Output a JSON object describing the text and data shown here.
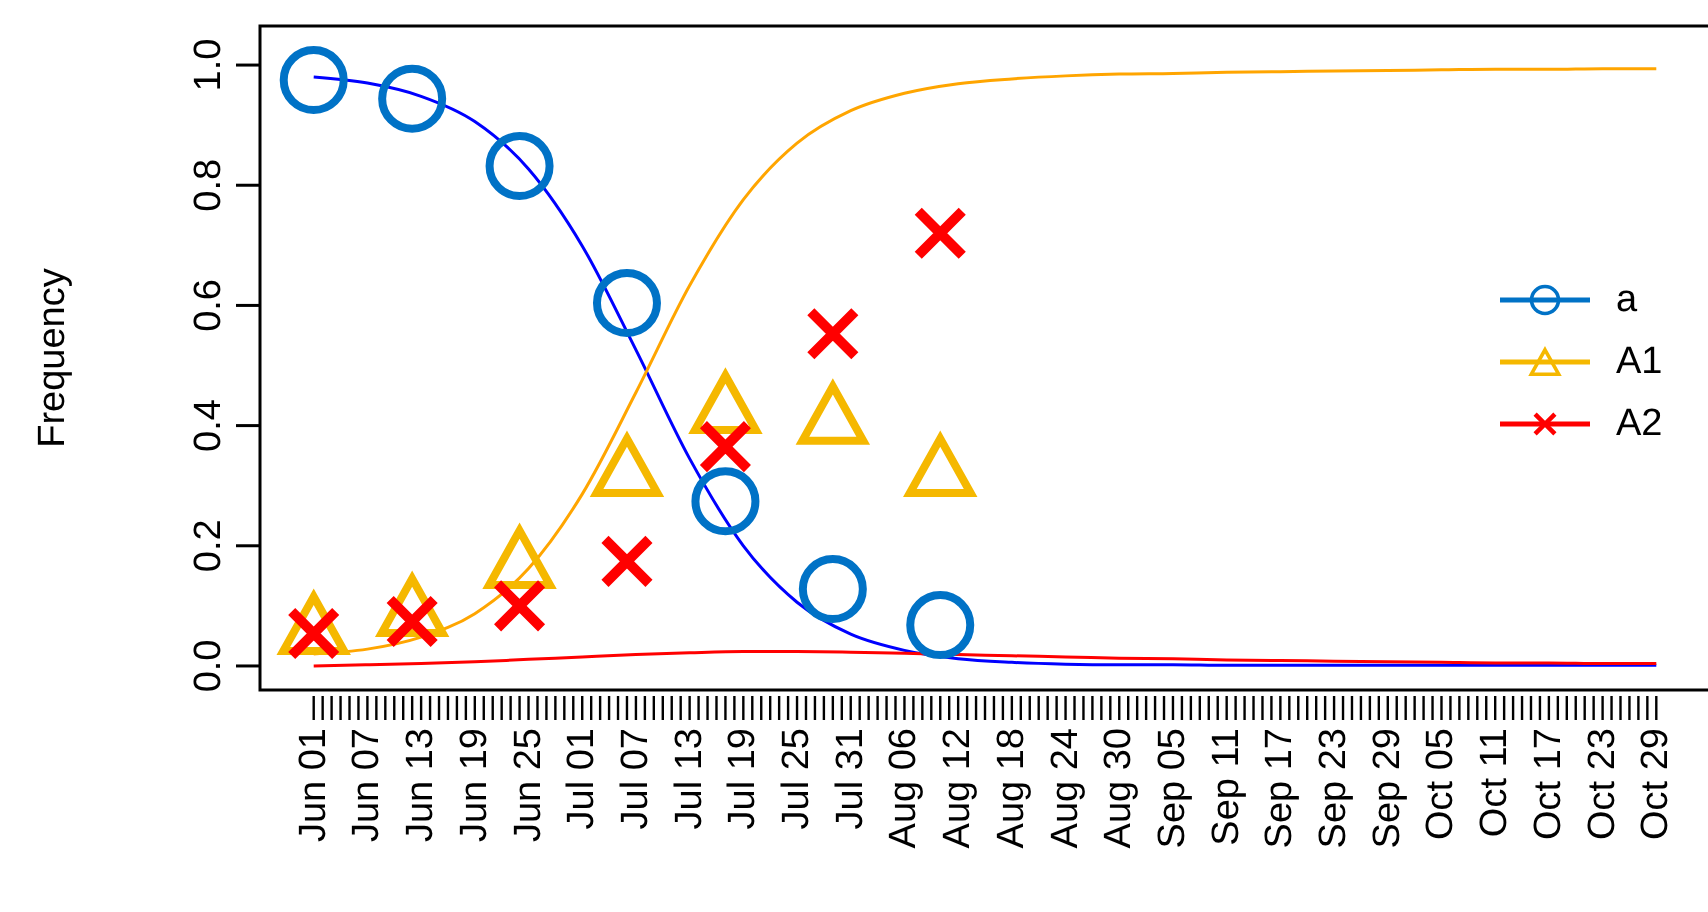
{
  "chart_data": {
    "type": "scatter",
    "ylabel": "Frequency",
    "legend": "right",
    "xlim": [
      "--05-26",
      "--11-04"
    ],
    "ylim": [
      -0.04,
      1.065
    ],
    "yticks": [
      {
        "value": 0,
        "label": "0.0"
      },
      {
        "value": 0.2,
        "label": "0.2"
      },
      {
        "value": 0.4,
        "label": "0.4"
      },
      {
        "value": 0.6,
        "label": "0.6"
      },
      {
        "value": 0.8,
        "label": "0.8"
      },
      {
        "value": 1,
        "label": "1.0"
      }
    ],
    "xticks": [
      {
        "value": "--06-01",
        "label": "Jun 01"
      },
      {
        "value": "--06-02",
        "label": null
      },
      {
        "value": "--06-03",
        "label": null
      },
      {
        "value": "--06-04",
        "label": null
      },
      {
        "value": "--06-05",
        "label": null
      },
      {
        "value": "--06-06",
        "label": null
      },
      {
        "value": "--06-07",
        "label": "Jun 07"
      },
      {
        "value": "--06-08",
        "label": null
      },
      {
        "value": "--06-09",
        "label": null
      },
      {
        "value": "--06-10",
        "label": null
      },
      {
        "value": "--06-11",
        "label": null
      },
      {
        "value": "--06-12",
        "label": null
      },
      {
        "value": "--06-13",
        "label": "Jun 13"
      },
      {
        "value": "--06-14",
        "label": null
      },
      {
        "value": "--06-15",
        "label": null
      },
      {
        "value": "--06-16",
        "label": null
      },
      {
        "value": "--06-17",
        "label": null
      },
      {
        "value": "--06-18",
        "label": null
      },
      {
        "value": "--06-19",
        "label": "Jun 19"
      },
      {
        "value": "--06-20",
        "label": null
      },
      {
        "value": "--06-21",
        "label": null
      },
      {
        "value": "--06-22",
        "label": null
      },
      {
        "value": "--06-23",
        "label": null
      },
      {
        "value": "--06-24",
        "label": null
      },
      {
        "value": "--06-25",
        "label": "Jun 25"
      },
      {
        "value": "--06-26",
        "label": null
      },
      {
        "value": "--06-27",
        "label": null
      },
      {
        "value": "--06-28",
        "label": null
      },
      {
        "value": "--06-29",
        "label": null
      },
      {
        "value": "--06-30",
        "label": null
      },
      {
        "value": "--07-01",
        "label": "Jul 01"
      },
      {
        "value": "--07-02",
        "label": null
      },
      {
        "value": "--07-03",
        "label": null
      },
      {
        "value": "--07-04",
        "label": null
      },
      {
        "value": "--07-05",
        "label": null
      },
      {
        "value": "--07-06",
        "label": null
      },
      {
        "value": "--07-07",
        "label": "Jul 07"
      },
      {
        "value": "--07-08",
        "label": null
      },
      {
        "value": "--07-09",
        "label": null
      },
      {
        "value": "--07-10",
        "label": null
      },
      {
        "value": "--07-11",
        "label": null
      },
      {
        "value": "--07-12",
        "label": null
      },
      {
        "value": "--07-13",
        "label": "Jul 13"
      },
      {
        "value": "--07-14",
        "label": null
      },
      {
        "value": "--07-15",
        "label": null
      },
      {
        "value": "--07-16",
        "label": null
      },
      {
        "value": "--07-17",
        "label": null
      },
      {
        "value": "--07-18",
        "label": null
      },
      {
        "value": "--07-19",
        "label": "Jul 19"
      },
      {
        "value": "--07-20",
        "label": null
      },
      {
        "value": "--07-21",
        "label": null
      },
      {
        "value": "--07-22",
        "label": null
      },
      {
        "value": "--07-23",
        "label": null
      },
      {
        "value": "--07-24",
        "label": null
      },
      {
        "value": "--07-25",
        "label": "Jul 25"
      },
      {
        "value": "--07-26",
        "label": null
      },
      {
        "value": "--07-27",
        "label": null
      },
      {
        "value": "--07-28",
        "label": null
      },
      {
        "value": "--07-29",
        "label": null
      },
      {
        "value": "--07-30",
        "label": null
      },
      {
        "value": "--07-31",
        "label": "Jul 31"
      },
      {
        "value": "--08-01",
        "label": null
      },
      {
        "value": "--08-02",
        "label": null
      },
      {
        "value": "--08-03",
        "label": null
      },
      {
        "value": "--08-04",
        "label": null
      },
      {
        "value": "--08-05",
        "label": null
      },
      {
        "value": "--08-06",
        "label": "Aug 06"
      },
      {
        "value": "--08-07",
        "label": null
      },
      {
        "value": "--08-08",
        "label": null
      },
      {
        "value": "--08-09",
        "label": null
      },
      {
        "value": "--08-10",
        "label": null
      },
      {
        "value": "--08-11",
        "label": null
      },
      {
        "value": "--08-12",
        "label": "Aug 12"
      },
      {
        "value": "--08-13",
        "label": null
      },
      {
        "value": "--08-14",
        "label": null
      },
      {
        "value": "--08-15",
        "label": null
      },
      {
        "value": "--08-16",
        "label": null
      },
      {
        "value": "--08-17",
        "label": null
      },
      {
        "value": "--08-18",
        "label": "Aug 18"
      },
      {
        "value": "--08-19",
        "label": null
      },
      {
        "value": "--08-20",
        "label": null
      },
      {
        "value": "--08-21",
        "label": null
      },
      {
        "value": "--08-22",
        "label": null
      },
      {
        "value": "--08-23",
        "label": null
      },
      {
        "value": "--08-24",
        "label": "Aug 24"
      },
      {
        "value": "--08-25",
        "label": null
      },
      {
        "value": "--08-26",
        "label": null
      },
      {
        "value": "--08-27",
        "label": null
      },
      {
        "value": "--08-28",
        "label": null
      },
      {
        "value": "--08-29",
        "label": null
      },
      {
        "value": "--08-30",
        "label": "Aug 30"
      },
      {
        "value": "--08-31",
        "label": null
      },
      {
        "value": "--09-01",
        "label": null
      },
      {
        "value": "--09-02",
        "label": null
      },
      {
        "value": "--09-03",
        "label": null
      },
      {
        "value": "--09-04",
        "label": null
      },
      {
        "value": "--09-05",
        "label": "Sep 05"
      },
      {
        "value": "--09-06",
        "label": null
      },
      {
        "value": "--09-07",
        "label": null
      },
      {
        "value": "--09-08",
        "label": null
      },
      {
        "value": "--09-09",
        "label": null
      },
      {
        "value": "--09-10",
        "label": null
      },
      {
        "value": "--09-11",
        "label": "Sep 11"
      },
      {
        "value": "--09-12",
        "label": null
      },
      {
        "value": "--09-13",
        "label": null
      },
      {
        "value": "--09-14",
        "label": null
      },
      {
        "value": "--09-15",
        "label": null
      },
      {
        "value": "--09-16",
        "label": null
      },
      {
        "value": "--09-17",
        "label": "Sep 17"
      },
      {
        "value": "--09-18",
        "label": null
      },
      {
        "value": "--09-19",
        "label": null
      },
      {
        "value": "--09-20",
        "label": null
      },
      {
        "value": "--09-21",
        "label": null
      },
      {
        "value": "--09-22",
        "label": null
      },
      {
        "value": "--09-23",
        "label": "Sep 23"
      },
      {
        "value": "--09-24",
        "label": null
      },
      {
        "value": "--09-25",
        "label": null
      },
      {
        "value": "--09-26",
        "label": null
      },
      {
        "value": "--09-27",
        "label": null
      },
      {
        "value": "--09-28",
        "label": null
      },
      {
        "value": "--09-29",
        "label": "Sep 29"
      },
      {
        "value": "--09-30",
        "label": null
      },
      {
        "value": "--10-01",
        "label": null
      },
      {
        "value": "--10-02",
        "label": null
      },
      {
        "value": "--10-03",
        "label": null
      },
      {
        "value": "--10-04",
        "label": null
      },
      {
        "value": "--10-05",
        "label": "Oct 05"
      },
      {
        "value": "--10-06",
        "label": null
      },
      {
        "value": "--10-07",
        "label": null
      },
      {
        "value": "--10-08",
        "label": null
      },
      {
        "value": "--10-09",
        "label": null
      },
      {
        "value": "--10-10",
        "label": null
      },
      {
        "value": "--10-11",
        "label": "Oct 11"
      },
      {
        "value": "--10-12",
        "label": null
      },
      {
        "value": "--10-13",
        "label": null
      },
      {
        "value": "--10-14",
        "label": null
      },
      {
        "value": "--10-15",
        "label": null
      },
      {
        "value": "--10-16",
        "label": null
      },
      {
        "value": "--10-17",
        "label": "Oct 17"
      },
      {
        "value": "--10-18",
        "label": null
      },
      {
        "value": "--10-19",
        "label": null
      },
      {
        "value": "--10-20",
        "label": null
      },
      {
        "value": "--10-21",
        "label": null
      },
      {
        "value": "--10-22",
        "label": null
      },
      {
        "value": "--10-23",
        "label": "Oct 23"
      },
      {
        "value": "--10-24",
        "label": null
      },
      {
        "value": "--10-25",
        "label": null
      },
      {
        "value": "--10-26",
        "label": null
      },
      {
        "value": "--10-27",
        "label": null
      },
      {
        "value": "--10-28",
        "label": null
      },
      {
        "value": "--10-29",
        "label": "Oct 29"
      }
    ],
    "series": [
      {
        "type": "line",
        "color": "#0000ff",
        "x": [
          "--06-01",
          "--06-07",
          "--06-13",
          "--06-19",
          "--06-25",
          "--07-01",
          "--07-07",
          "--07-13",
          "--07-19",
          "--07-25",
          "--07-31",
          "--08-06",
          "--08-12",
          "--08-18",
          "--08-24",
          "--08-30",
          "--09-05",
          "--09-11",
          "--09-17",
          "--09-23",
          "--09-29",
          "--10-05",
          "--10-11",
          "--10-17",
          "--10-23",
          "--10-29"
        ],
        "values": [
          0.98,
          0.97,
          0.948,
          0.906,
          0.827,
          0.699,
          0.526,
          0.345,
          0.2,
          0.106,
          0.053,
          0.026,
          0.012,
          0.006,
          0.003,
          0.002,
          0.002,
          0.001,
          0.001,
          0.001,
          0.001,
          0.001,
          0.001,
          0.001,
          0.001,
          0.001
        ]
      },
      {
        "type": "line",
        "color": "#ffa500",
        "x": [
          "--06-01",
          "--06-07",
          "--06-13",
          "--06-19",
          "--06-25",
          "--07-01",
          "--07-07",
          "--07-13",
          "--07-19",
          "--07-25",
          "--07-31",
          "--08-06",
          "--08-12",
          "--08-18",
          "--08-24",
          "--08-30",
          "--09-05",
          "--09-11",
          "--09-17",
          "--09-23",
          "--09-29",
          "--10-05",
          "--10-11",
          "--10-17",
          "--10-23",
          "--10-29"
        ],
        "values": [
          0.02,
          0.028,
          0.048,
          0.087,
          0.162,
          0.286,
          0.455,
          0.633,
          0.776,
          0.87,
          0.924,
          0.953,
          0.969,
          0.977,
          0.982,
          0.985,
          0.986,
          0.988,
          0.989,
          0.99,
          0.991,
          0.992,
          0.993,
          0.993,
          0.994,
          0.994
        ]
      },
      {
        "type": "line",
        "color": "#ff0000",
        "x": [
          "--06-01",
          "--06-07",
          "--06-13",
          "--06-19",
          "--06-25",
          "--07-01",
          "--07-07",
          "--07-13",
          "--07-19",
          "--07-25",
          "--07-31",
          "--08-06",
          "--08-12",
          "--08-18",
          "--08-24",
          "--08-30",
          "--09-05",
          "--09-11",
          "--09-17",
          "--09-23",
          "--09-29",
          "--10-05",
          "--10-11",
          "--10-17",
          "--10-23",
          "--10-29"
        ],
        "values": [
          0.0,
          0.002,
          0.004,
          0.007,
          0.011,
          0.015,
          0.019,
          0.022,
          0.024,
          0.024,
          0.023,
          0.021,
          0.019,
          0.017,
          0.015,
          0.013,
          0.012,
          0.01,
          0.009,
          0.008,
          0.007,
          0.006,
          0.005,
          0.005,
          0.004,
          0.004
        ]
      },
      {
        "name": "a",
        "marker": "circle",
        "color": "#0072c6",
        "x": [
          "--06-01",
          "--06-12",
          "--06-24",
          "--07-06",
          "--07-17",
          "--07-29",
          "--08-10"
        ],
        "values": [
          0.975,
          0.944,
          0.832,
          0.604,
          0.274,
          0.128,
          0.068
        ]
      },
      {
        "name": "A1",
        "marker": "triangle",
        "color": "#f5b800",
        "x": [
          "--06-01",
          "--06-12",
          "--06-24",
          "--07-06",
          "--07-17",
          "--07-29",
          "--08-10"
        ],
        "values": [
          0.07,
          0.1,
          0.18,
          0.333,
          0.438,
          0.42,
          0.333
        ]
      },
      {
        "name": "A2",
        "marker": "cross",
        "color": "#ff0000",
        "x": [
          "--06-01",
          "--06-12",
          "--06-24",
          "--07-06",
          "--07-17",
          "--07-29",
          "--08-10"
        ],
        "values": [
          0.054,
          0.074,
          0.1,
          0.174,
          0.365,
          0.553,
          0.72
        ]
      }
    ]
  }
}
